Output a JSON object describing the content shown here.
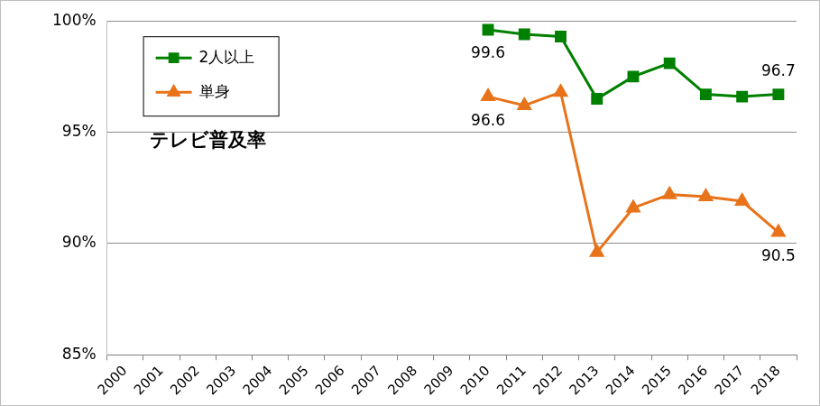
{
  "chart_data": {
    "type": "line",
    "title": "テレビ普及率",
    "categories": [
      "2000",
      "2001",
      "2002",
      "2003",
      "2004",
      "2005",
      "2006",
      "2007",
      "2008",
      "2009",
      "2010",
      "2011",
      "2012",
      "2013",
      "2014",
      "2015",
      "2016",
      "2017",
      "2018"
    ],
    "series": [
      {
        "name": "2人以上",
        "color": "#008000",
        "marker": "square",
        "line_style": "solid",
        "values": [
          null,
          null,
          null,
          null,
          null,
          null,
          null,
          null,
          null,
          null,
          99.6,
          99.4,
          99.3,
          96.5,
          97.5,
          98.1,
          96.7,
          96.6,
          96.7
        ],
        "value_labels": [
          null,
          null,
          null,
          null,
          null,
          null,
          null,
          null,
          null,
          null,
          "99.6",
          null,
          null,
          null,
          null,
          null,
          null,
          null,
          "96.7"
        ]
      },
      {
        "name": "単身",
        "color": "#e8731a",
        "marker": "triangle",
        "line_style": "solid",
        "values": [
          null,
          null,
          null,
          null,
          null,
          null,
          null,
          null,
          null,
          null,
          96.6,
          96.2,
          96.8,
          89.6,
          91.6,
          92.2,
          92.1,
          91.9,
          90.5
        ],
        "value_labels": [
          null,
          null,
          null,
          null,
          null,
          null,
          null,
          null,
          null,
          null,
          "96.6",
          null,
          null,
          null,
          null,
          null,
          null,
          null,
          "90.5"
        ]
      }
    ],
    "ylim": [
      85,
      100
    ],
    "yticks": [
      {
        "value": 85,
        "label": "85%"
      },
      {
        "value": 90,
        "label": "90%"
      },
      {
        "value": 95,
        "label": "95%"
      },
      {
        "value": 100,
        "label": "100%"
      }
    ],
    "grid": true,
    "legend": "upper left"
  }
}
